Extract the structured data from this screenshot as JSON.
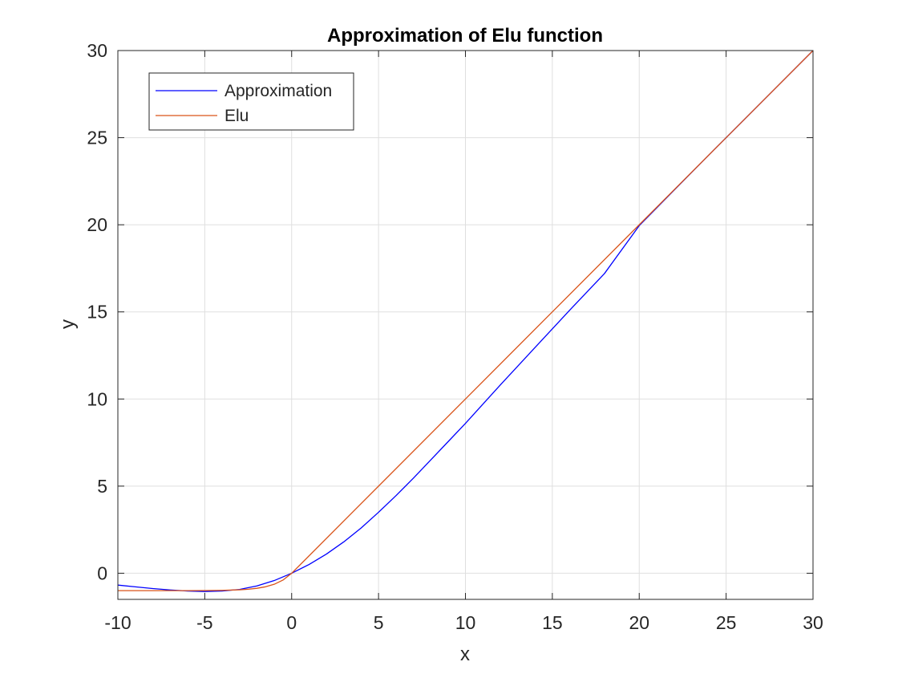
{
  "chart_data": {
    "type": "line",
    "title": "Approximation of Elu function",
    "xlabel": "x",
    "ylabel": "y",
    "xlim": [
      -10,
      30
    ],
    "ylim": [
      -1.5,
      30
    ],
    "xticks": [
      -10,
      -5,
      0,
      5,
      10,
      15,
      20,
      25,
      30
    ],
    "xtick_labels": [
      "-10",
      "-5",
      "0",
      "5",
      "10",
      "15",
      "20",
      "25",
      "30"
    ],
    "yticks": [
      0,
      5,
      10,
      15,
      20,
      25,
      30
    ],
    "ytick_labels": [
      "0",
      "5",
      "10",
      "15",
      "20",
      "25",
      "30"
    ],
    "grid": true,
    "legend_position": "top-left",
    "series": [
      {
        "name": "Approximation",
        "color": "#0000ff",
        "x": [
          -10,
          -9,
          -8,
          -7,
          -6,
          -5,
          -4,
          -3,
          -2,
          -1,
          0,
          1,
          2,
          3,
          4,
          5,
          6,
          7,
          8,
          9,
          10,
          12,
          14,
          16,
          18,
          20,
          22,
          24,
          26,
          28,
          30
        ],
        "y": [
          -0.68,
          -0.78,
          -0.88,
          -0.96,
          -1.02,
          -1.05,
          -1.02,
          -0.93,
          -0.73,
          -0.42,
          0.0,
          0.5,
          1.1,
          1.8,
          2.6,
          3.5,
          4.45,
          5.45,
          6.5,
          7.55,
          8.6,
          10.8,
          12.95,
          15.1,
          17.2,
          19.95,
          21.98,
          24.0,
          26.0,
          28.0,
          30.0
        ]
      },
      {
        "name": "Elu",
        "color": "#d95319",
        "x": [
          -10,
          -9,
          -8,
          -7,
          -6,
          -5,
          -4,
          -3,
          -2.5,
          -2,
          -1.5,
          -1,
          -0.5,
          0,
          5,
          10,
          15,
          20,
          25,
          30
        ],
        "y": [
          -1.0,
          -0.9999,
          -0.9997,
          -0.9991,
          -0.9975,
          -0.9933,
          -0.9817,
          -0.9502,
          -0.9179,
          -0.8647,
          -0.7769,
          -0.6321,
          -0.3935,
          0,
          5,
          10,
          15,
          20,
          25,
          30
        ]
      }
    ]
  }
}
